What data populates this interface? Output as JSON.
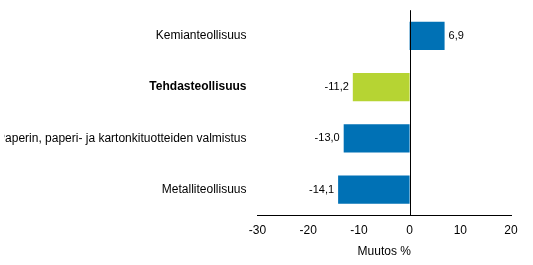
{
  "chart_data": {
    "type": "bar",
    "orientation": "horizontal",
    "categories": [
      "Kemianteollisuus",
      "Tehdasteollisuus",
      "Paperin, paperi- ja kartonkituotteiden valmistus",
      "Metalliteollisuus"
    ],
    "values": [
      6.9,
      -11.2,
      -13.0,
      -14.1
    ],
    "value_labels": [
      "6,9",
      "-11,2",
      "-13,0",
      "-14,1"
    ],
    "colors": [
      "#0071b5",
      "#b6d433",
      "#0071b5",
      "#0071b5"
    ],
    "xlabel": "Muutos %",
    "xlim": [
      -30,
      20
    ],
    "xticks": [
      -30,
      -20,
      -10,
      0,
      10,
      20
    ],
    "grid": false,
    "data_labels": true
  }
}
